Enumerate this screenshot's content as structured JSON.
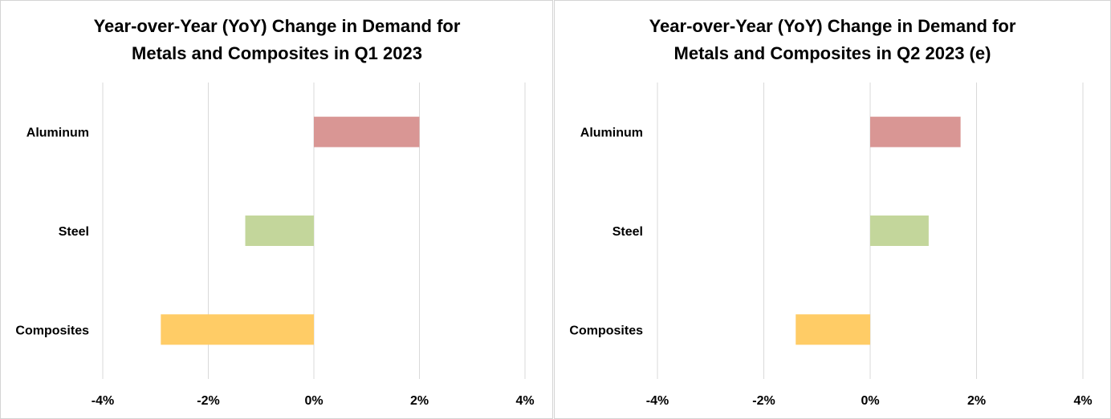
{
  "chart_data": [
    {
      "type": "bar",
      "orientation": "horizontal",
      "title": "Year-over-Year (YoY) Change in Demand for Metals and Composites in Q1 2023",
      "title_lines": [
        "Year-over-Year (YoY) Change in Demand for",
        "Metals and Composites in Q1 2023"
      ],
      "categories": [
        "Aluminum",
        "Steel",
        "Composites"
      ],
      "values": [
        2.0,
        -1.3,
        -2.9
      ],
      "colors": [
        "#d99694",
        "#c3d69b",
        "#ffcc66"
      ],
      "xlim": [
        -4,
        4
      ],
      "xticks": [
        -4,
        -2,
        0,
        2,
        4
      ],
      "xtick_labels": [
        "-4%",
        "-2%",
        "0%",
        "2%",
        "4%"
      ],
      "grid": "vertical",
      "legend": "none"
    },
    {
      "type": "bar",
      "orientation": "horizontal",
      "title": "Year-over-Year (YoY) Change in Demand for Metals and Composites in Q2 2023 (e)",
      "title_lines": [
        "Year-over-Year (YoY) Change in Demand for",
        "Metals and Composites in Q2 2023 (e)"
      ],
      "categories": [
        "Aluminum",
        "Steel",
        "Composites"
      ],
      "values": [
        1.7,
        1.1,
        -1.4
      ],
      "colors": [
        "#d99694",
        "#c3d69b",
        "#ffcc66"
      ],
      "xlim": [
        -4,
        4
      ],
      "xticks": [
        -4,
        -2,
        0,
        2,
        4
      ],
      "xtick_labels": [
        "-4%",
        "-2%",
        "0%",
        "2%",
        "4%"
      ],
      "grid": "vertical",
      "legend": "none"
    }
  ]
}
